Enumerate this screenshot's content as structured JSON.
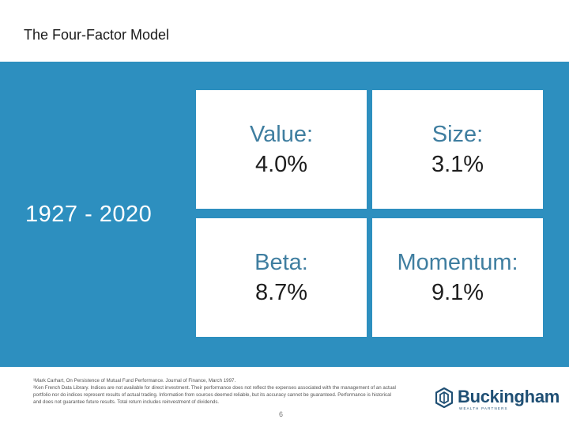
{
  "slide": {
    "title": "The Four-Factor Model",
    "period": "1927 - 2020",
    "page_number": "6"
  },
  "colors": {
    "panel_blue": "#2d8fbf",
    "factor_name": "#3f7ea0",
    "brand_navy": "#1f4f74"
  },
  "factors": [
    {
      "name": "Value:",
      "value": "4.0%"
    },
    {
      "name": "Size:",
      "value": "3.1%"
    },
    {
      "name": "Beta:",
      "value": "8.7%"
    },
    {
      "name": "Momentum:",
      "value": "9.1%"
    }
  ],
  "footnotes": [
    "¹Mark Carhart, On Persistence of Mutual Fund Performance. Journal of Finance, March 1997.",
    "²Ken French Data Library. Indices are not available for direct investment. Their performance does not reflect the expenses associated with the management of an actual portfolio nor do indices represent results of actual trading. Information from sources deemed reliable, but its accuracy cannot be guaranteed. Performance is historical and does not guarantee future results. Total return includes reinvestment of dividends."
  ],
  "logo": {
    "wordmark": "Buckingham",
    "tagline": "WEALTH PARTNERS",
    "icon": "hexagon-logo-icon"
  }
}
